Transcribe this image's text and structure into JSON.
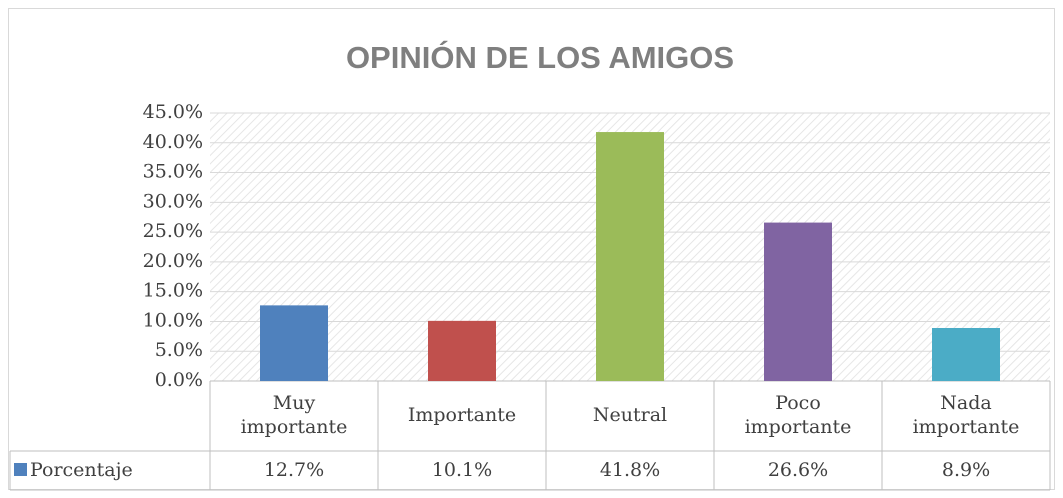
{
  "chart_data": {
    "type": "bar",
    "title": "OPINIÓN DE LOS AMIGOS",
    "categories": [
      "Muy importante",
      "Importante",
      "Neutral",
      "Poco importante",
      "Nada importante"
    ],
    "series": [
      {
        "name": "Porcentaje",
        "color": "#4f81bd",
        "colors": [
          "#4f81bd",
          "#c0504d",
          "#9bbb59",
          "#8064a2",
          "#4bacc6"
        ],
        "values": [
          12.7,
          10.1,
          41.8,
          26.6,
          8.9
        ],
        "value_labels": [
          "12.7%",
          "10.1%",
          "41.8%",
          "26.6%",
          "8.9%"
        ]
      }
    ],
    "ylim": [
      0,
      45
    ],
    "yticks": [
      {
        "value": 0,
        "label": "0.0%"
      },
      {
        "value": 5,
        "label": "5.0%"
      },
      {
        "value": 10,
        "label": "10.0%"
      },
      {
        "value": 15,
        "label": "15.0%"
      },
      {
        "value": 20,
        "label": "20.0%"
      },
      {
        "value": 25,
        "label": "25.0%"
      },
      {
        "value": 30,
        "label": "30.0%"
      },
      {
        "value": 35,
        "label": "35.0%"
      },
      {
        "value": 40,
        "label": "40.0%"
      },
      {
        "value": 45,
        "label": "45.0%"
      }
    ],
    "grid": true,
    "data_table": true
  }
}
